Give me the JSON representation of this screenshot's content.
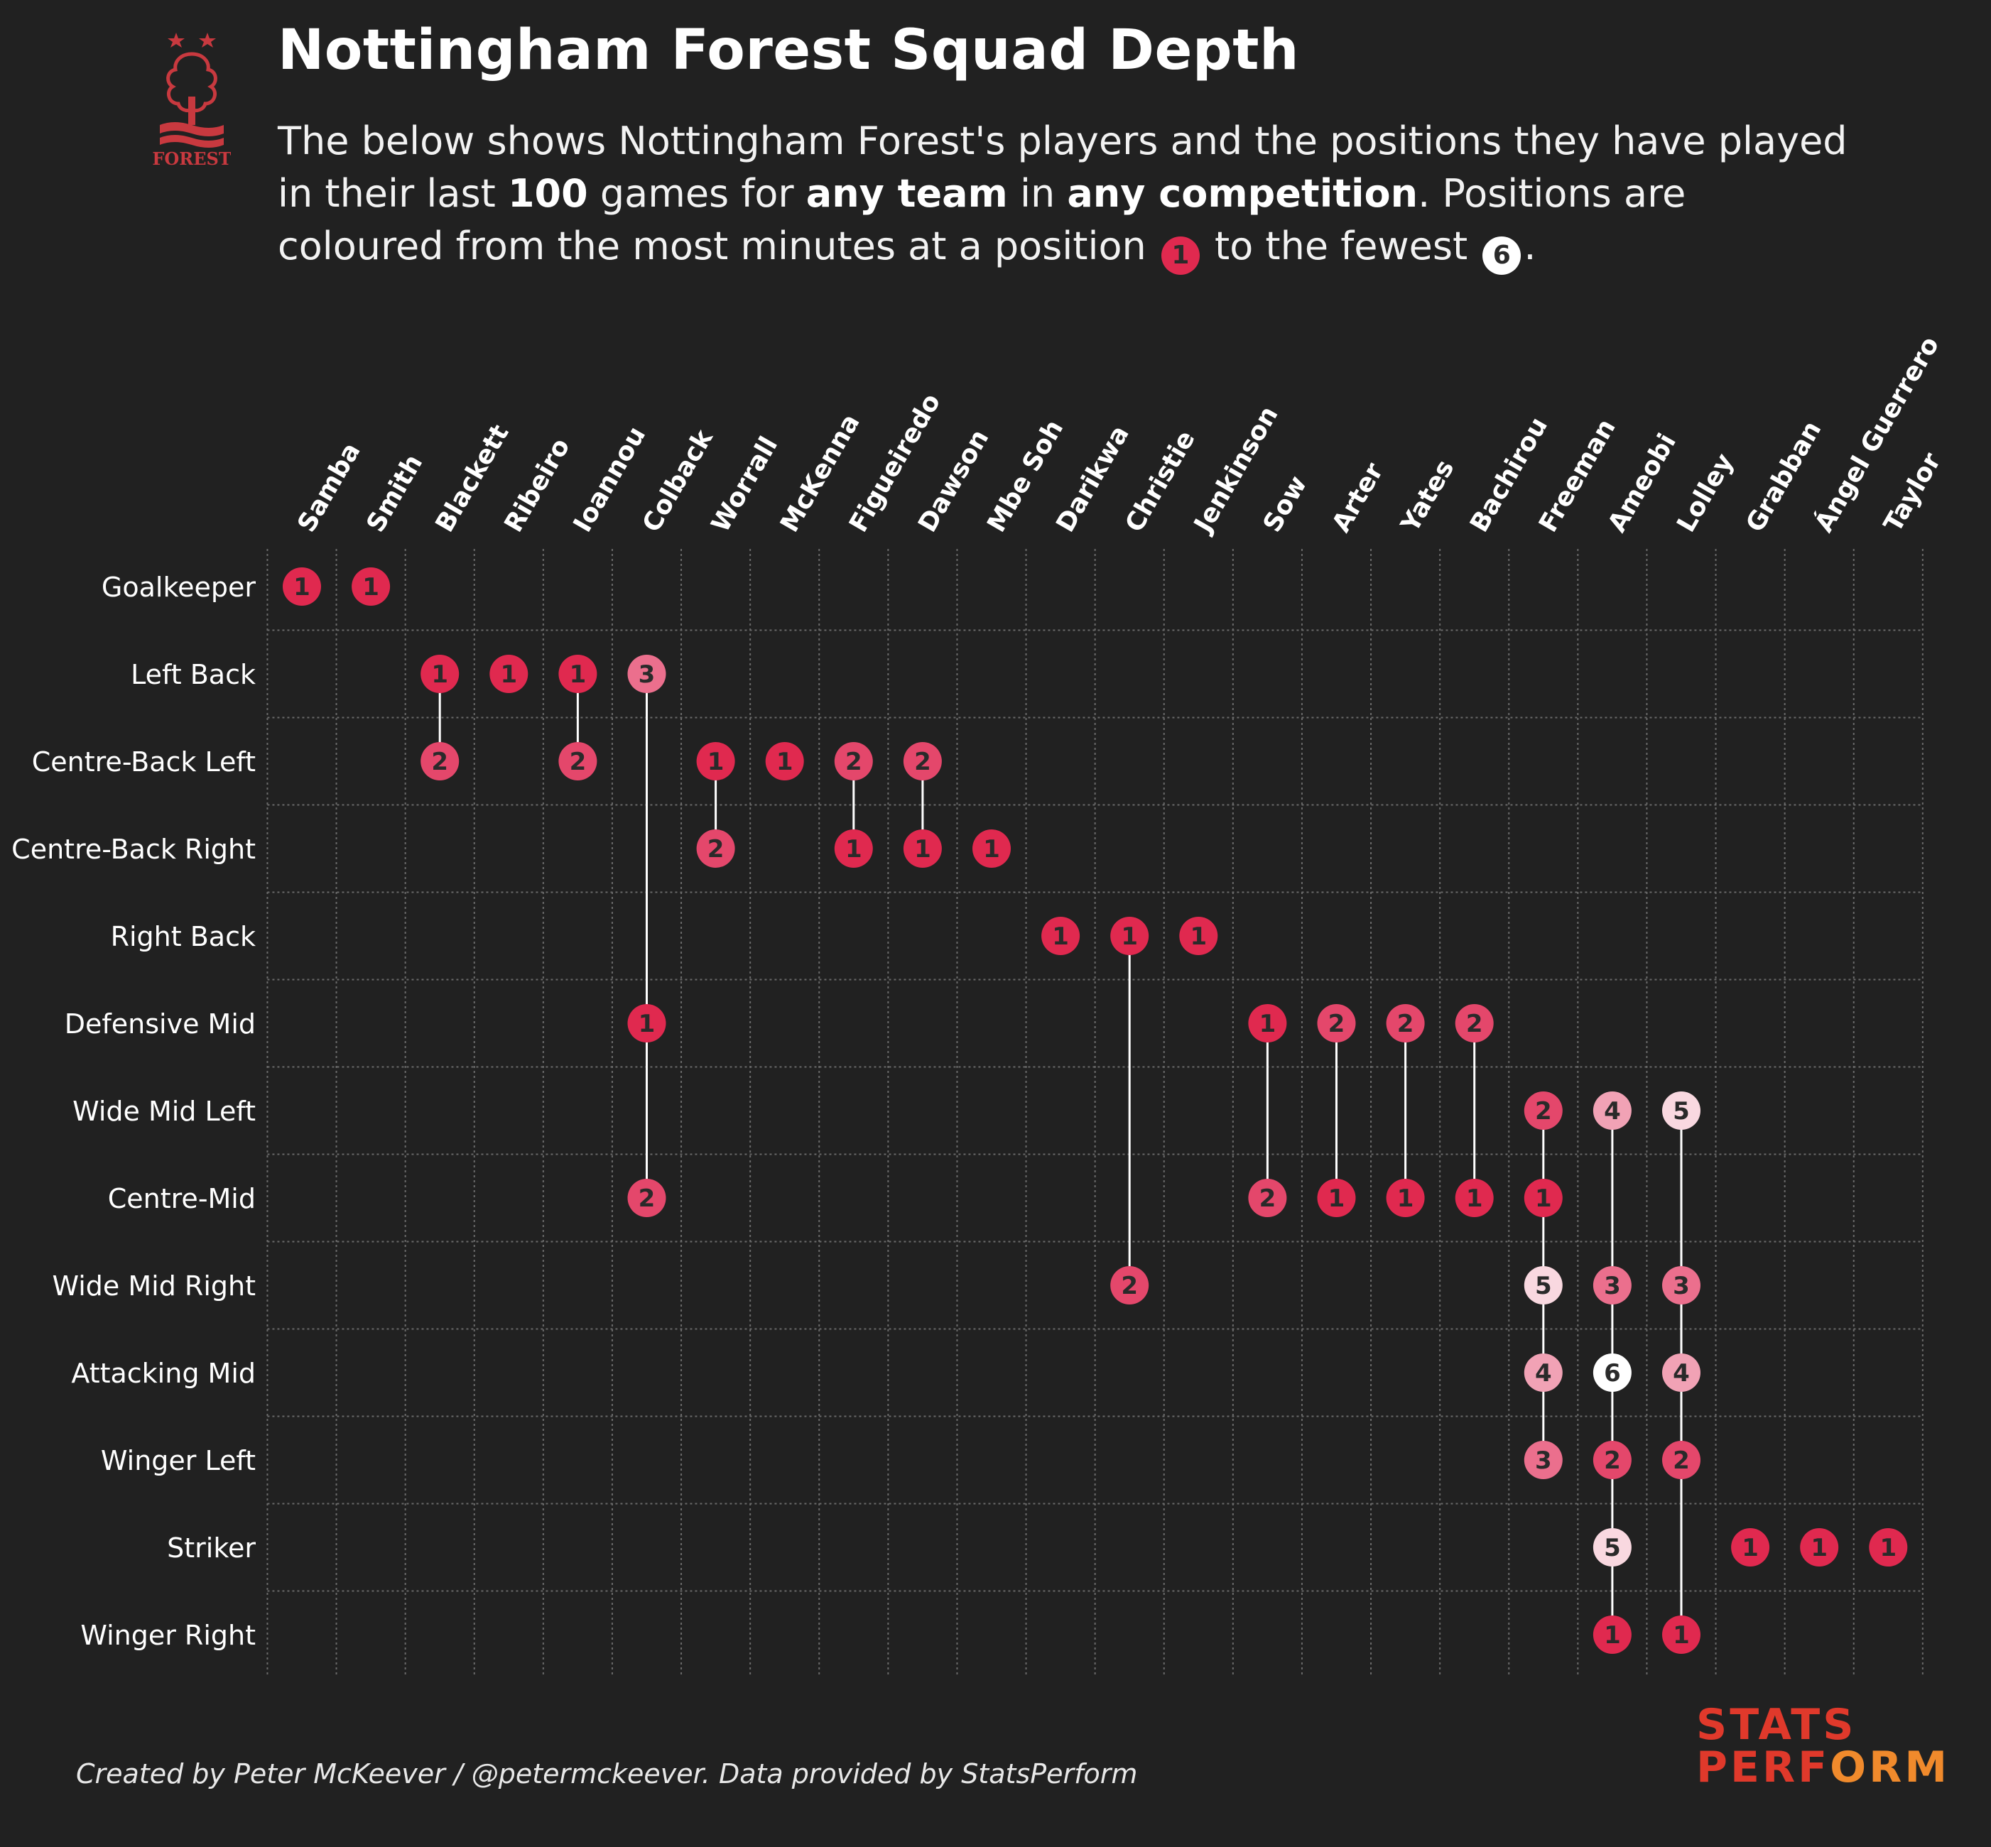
{
  "header": {
    "title": "Nottingham Forest Squad Depth",
    "subtitle_line1": "The below shows Nottingham Forest's players and the positions they have played",
    "subtitle_line2_pre": "in their last ",
    "subtitle_line2_b1": "100",
    "subtitle_line2_mid1": " games for ",
    "subtitle_line2_b2": "any team",
    "subtitle_line2_mid2": " in ",
    "subtitle_line2_b3": "any competition",
    "subtitle_line2_post": ". Positions are",
    "subtitle_line3_pre": "coloured from the most minutes at a position ",
    "subtitle_line3_mid": " to the fewest ",
    "subtitle_line3_post": ".",
    "legend_most": "1",
    "legend_fewest": "6"
  },
  "logo": {
    "text": "FOREST",
    "icon": "nottingham-forest-crest-icon"
  },
  "footer": {
    "credit": "Created by Peter McKeever / @petermckeever. Data provided by StatsPerform"
  },
  "brand": {
    "line1": "STATS",
    "line2a": "PERF",
    "line2b": "O",
    "line2c": "RM"
  },
  "colors": {
    "background": "#212121",
    "rank": {
      "1": "#e0294f",
      "2": "#e4476b",
      "3": "#eb6f8d",
      "4": "#f1a2b5",
      "5": "#f9d8e0",
      "6": "#ffffff"
    },
    "number_text": "#2a2a2a",
    "connector": "#ffffff",
    "grid": "#6a6a6a"
  },
  "chart_data": {
    "type": "dot-matrix",
    "positions": [
      "Goalkeeper",
      "Left Back",
      "Centre-Back Left",
      "Centre-Back Right",
      "Right Back",
      "Defensive Mid",
      "Wide Mid Left",
      "Centre-Mid",
      "Wide Mid Right",
      "Attacking Mid",
      "Winger Left",
      "Striker",
      "Winger Right"
    ],
    "players": [
      {
        "name": "Samba",
        "ranks": {
          "Goalkeeper": 1
        }
      },
      {
        "name": "Smith",
        "ranks": {
          "Goalkeeper": 1
        }
      },
      {
        "name": "Blackett",
        "ranks": {
          "Left Back": 1,
          "Centre-Back Left": 2
        }
      },
      {
        "name": "Ribeiro",
        "ranks": {
          "Left Back": 1
        }
      },
      {
        "name": "Ioannou",
        "ranks": {
          "Left Back": 1,
          "Centre-Back Left": 2
        }
      },
      {
        "name": "Colback",
        "ranks": {
          "Left Back": 3,
          "Defensive Mid": 1,
          "Centre-Mid": 2
        }
      },
      {
        "name": "Worrall",
        "ranks": {
          "Centre-Back Left": 1,
          "Centre-Back Right": 2
        }
      },
      {
        "name": "McKenna",
        "ranks": {
          "Centre-Back Left": 1
        }
      },
      {
        "name": "Figueiredo",
        "ranks": {
          "Centre-Back Left": 2,
          "Centre-Back Right": 1
        }
      },
      {
        "name": "Dawson",
        "ranks": {
          "Centre-Back Left": 2,
          "Centre-Back Right": 1
        }
      },
      {
        "name": "Mbe Soh",
        "ranks": {
          "Centre-Back Right": 1
        }
      },
      {
        "name": "Darikwa",
        "ranks": {
          "Right Back": 1
        }
      },
      {
        "name": "Christie",
        "ranks": {
          "Right Back": 1,
          "Wide Mid Right": 2
        }
      },
      {
        "name": "Jenkinson",
        "ranks": {
          "Right Back": 1
        }
      },
      {
        "name": "Sow",
        "ranks": {
          "Defensive Mid": 1,
          "Centre-Mid": 2
        }
      },
      {
        "name": "Arter",
        "ranks": {
          "Defensive Mid": 2,
          "Centre-Mid": 1
        }
      },
      {
        "name": "Yates",
        "ranks": {
          "Defensive Mid": 2,
          "Centre-Mid": 1
        }
      },
      {
        "name": "Bachirou",
        "ranks": {
          "Defensive Mid": 2,
          "Centre-Mid": 1
        }
      },
      {
        "name": "Freeman",
        "ranks": {
          "Wide Mid Left": 2,
          "Centre-Mid": 1,
          "Wide Mid Right": 5,
          "Attacking Mid": 4,
          "Winger Left": 3
        }
      },
      {
        "name": "Ameobi",
        "ranks": {
          "Wide Mid Left": 4,
          "Wide Mid Right": 3,
          "Attacking Mid": 6,
          "Winger Left": 2,
          "Striker": 5,
          "Winger Right": 1
        }
      },
      {
        "name": "Lolley",
        "ranks": {
          "Wide Mid Left": 5,
          "Wide Mid Right": 3,
          "Attacking Mid": 4,
          "Winger Left": 2,
          "Winger Right": 1
        }
      },
      {
        "name": "Grabban",
        "ranks": {
          "Striker": 1
        }
      },
      {
        "name": "Ángel Guerrero",
        "ranks": {
          "Striker": 1
        }
      },
      {
        "name": "Taylor",
        "ranks": {
          "Striker": 1
        }
      }
    ],
    "rank_scale": [
      1,
      2,
      3,
      4,
      5,
      6
    ],
    "grid": true
  }
}
